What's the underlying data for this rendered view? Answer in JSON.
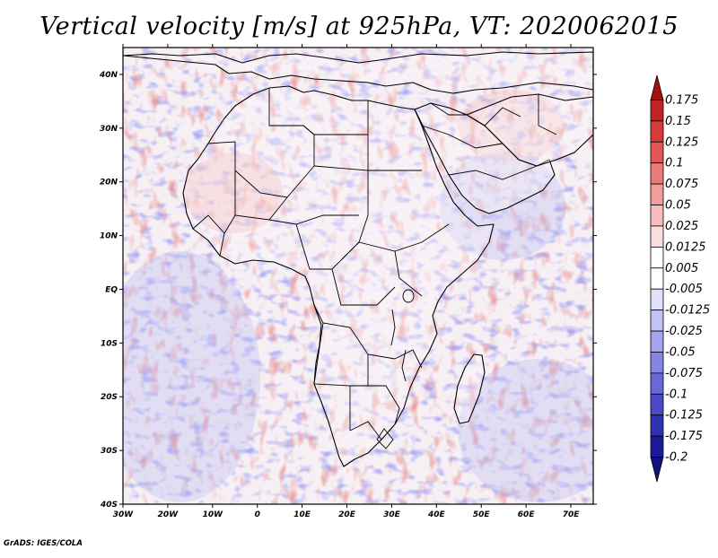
{
  "title": "Vertical velocity [m/s] at 925hPa, VT: 2020062015",
  "credit": "GrADS: IGES/COLA",
  "map": {
    "variable": "Vertical velocity",
    "units": "m/s",
    "level": "925hPa",
    "valid_time": "2020062015",
    "lon_range": [
      -30,
      75
    ],
    "lat_range": [
      -40,
      45
    ],
    "lon_labels": [
      "30W",
      "20W",
      "10W",
      "0",
      "10E",
      "20E",
      "30E",
      "40E",
      "50E",
      "60E",
      "70E"
    ],
    "lat_labels": [
      "40S",
      "30S",
      "20S",
      "10S",
      "EQ",
      "10N",
      "20N",
      "30N",
      "40N"
    ]
  },
  "colorbar": {
    "levels": [
      "0.175",
      "0.15",
      "0.125",
      "0.1",
      "0.075",
      "0.05",
      "0.025",
      "0.0125",
      "0.005",
      "-0.005",
      "-0.0125",
      "-0.025",
      "-0.05",
      "-0.075",
      "-0.1",
      "-0.125",
      "-0.175",
      "-0.2"
    ],
    "colors": [
      "#a11111",
      "#c02424",
      "#d83a3a",
      "#e25656",
      "#eb7a7a",
      "#f29c9c",
      "#f7bcbc",
      "#fbdede",
      "#ffffff",
      "#ffffff",
      "#e0e0fb",
      "#c2c2f4",
      "#a4a4ec",
      "#8686e2",
      "#6868d6",
      "#4a4ac8",
      "#3030b2",
      "#1a1a98",
      "#12127e"
    ]
  }
}
